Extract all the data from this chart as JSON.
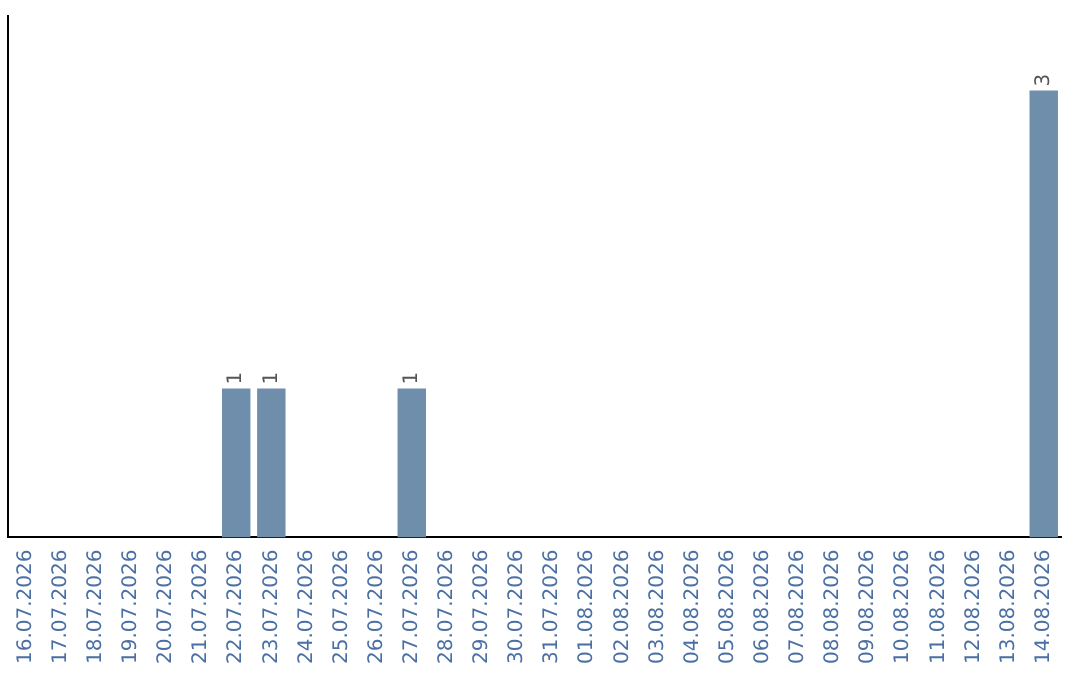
{
  "chart_data": {
    "type": "bar",
    "categories": [
      "16.07.2026",
      "17.07.2026",
      "18.07.2026",
      "19.07.2026",
      "20.07.2026",
      "21.07.2026",
      "22.07.2026",
      "23.07.2026",
      "24.07.2026",
      "25.07.2026",
      "26.07.2026",
      "27.07.2026",
      "28.07.2026",
      "29.07.2026",
      "30.07.2026",
      "31.07.2026",
      "01.08.2026",
      "02.08.2026",
      "03.08.2026",
      "04.08.2026",
      "05.08.2026",
      "06.08.2026",
      "07.08.2026",
      "08.08.2026",
      "09.08.2026",
      "10.08.2026",
      "11.08.2026",
      "12.08.2026",
      "13.08.2026",
      "14.08.2026"
    ],
    "values": [
      0,
      0,
      0,
      0,
      0,
      0,
      1,
      1,
      0,
      0,
      0,
      1,
      0,
      0,
      0,
      0,
      0,
      0,
      0,
      0,
      0,
      0,
      0,
      0,
      0,
      0,
      0,
      0,
      0,
      3
    ],
    "value_labels": [
      null,
      null,
      null,
      null,
      null,
      null,
      "1",
      "1",
      null,
      null,
      null,
      "1",
      null,
      null,
      null,
      null,
      null,
      null,
      null,
      null,
      null,
      null,
      null,
      null,
      null,
      null,
      null,
      null,
      null,
      "3"
    ],
    "color": "#6e8eab",
    "grid": false,
    "legend": false,
    "tick_labels": "x"
  }
}
